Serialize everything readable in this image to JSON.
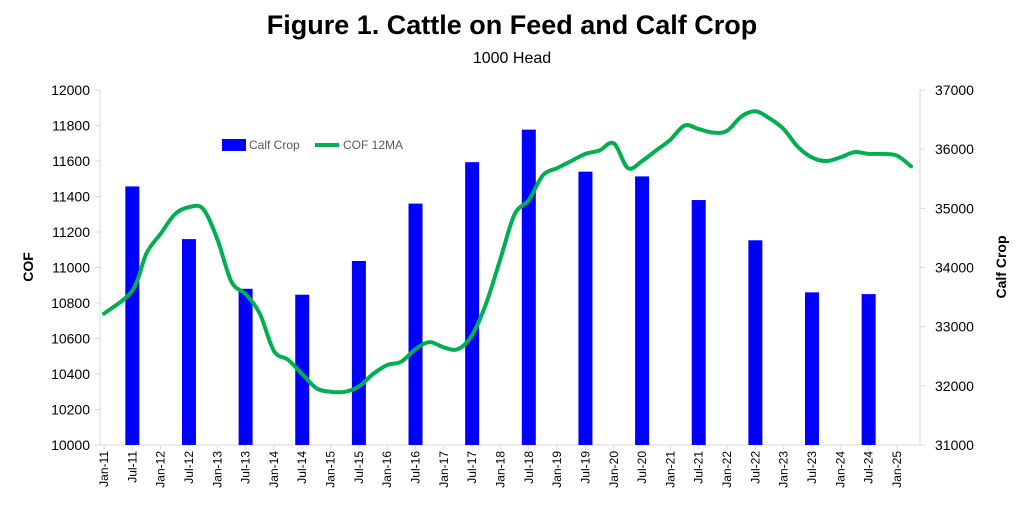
{
  "chart_data": {
    "type": "bar+line",
    "title": "Figure 1. Cattle on Feed and Calf Crop",
    "subtitle": "1000 Head",
    "ylabel_left": "COF",
    "ylabel_right": "Calf Crop",
    "ylim_left": [
      10000,
      12000
    ],
    "ylim_right": [
      31000,
      37000
    ],
    "yticks_left": [
      "10000",
      "10200",
      "10400",
      "10600",
      "10800",
      "11000",
      "11200",
      "11400",
      "11600",
      "11800",
      "12000"
    ],
    "yticks_right": [
      "31000",
      "32000",
      "33000",
      "34000",
      "35000",
      "36000",
      "37000"
    ],
    "x_tick_labels": [
      "Jan-11",
      "Jul-11",
      "Jan-12",
      "Jul-12",
      "Jan-13",
      "Jul-13",
      "Jan-14",
      "Jul-14",
      "Jan-15",
      "Jul-15",
      "Jan-16",
      "Jul-16",
      "Jan-17",
      "Jul-17",
      "Jan-18",
      "Jul-18",
      "Jan-19",
      "Jul-19",
      "Jan-20",
      "Jul-20",
      "Jan-21",
      "Jul-21",
      "Jan-22",
      "Jul-22",
      "Jan-23",
      "Jul-23",
      "Jan-24",
      "Jul-24",
      "Jan-25"
    ],
    "legend": {
      "placement": "top-left",
      "bar_label": "Calf Crop",
      "line_label": "COF 12MA"
    },
    "colors": {
      "bar": "#0000FF",
      "line": "#00B050",
      "axis": "#D9D9D9"
    },
    "calf_crop": {
      "name": "Calf Crop",
      "axis": "right",
      "x": [
        "Jul-11",
        "Jul-12",
        "Jul-13",
        "Jul-14",
        "Jul-15",
        "Jul-16",
        "Jul-17",
        "Jul-18",
        "Jul-19",
        "Jul-20",
        "Jul-21",
        "Jul-22",
        "Jul-23",
        "Jul-24"
      ],
      "values": [
        35370,
        34480,
        33640,
        33540,
        34110,
        35080,
        35780,
        36330,
        35620,
        35540,
        35140,
        34460,
        33580,
        33550
      ]
    },
    "cof_12ma": {
      "name": "COF 12MA",
      "axis": "left",
      "points": [
        [
          "Jan-11",
          10740
        ],
        [
          "Jul-11",
          10870
        ],
        [
          "Oct-11",
          11080
        ],
        [
          "Jan-12",
          11190
        ],
        [
          "Apr-12",
          11300
        ],
        [
          "Jul-12",
          11340
        ],
        [
          "Oct-12",
          11330
        ],
        [
          "Jan-13",
          11160
        ],
        [
          "Apr-13",
          10920
        ],
        [
          "Jul-13",
          10850
        ],
        [
          "Oct-13",
          10740
        ],
        [
          "Jan-14",
          10530
        ],
        [
          "Apr-14",
          10480
        ],
        [
          "Jul-14",
          10400
        ],
        [
          "Oct-14",
          10320
        ],
        [
          "Jan-15",
          10300
        ],
        [
          "Apr-15",
          10300
        ],
        [
          "Jul-15",
          10330
        ],
        [
          "Oct-15",
          10400
        ],
        [
          "Jan-16",
          10450
        ],
        [
          "Apr-16",
          10470
        ],
        [
          "Jul-16",
          10540
        ],
        [
          "Oct-16",
          10580
        ],
        [
          "Jan-17",
          10550
        ],
        [
          "Apr-17",
          10540
        ],
        [
          "Jul-17",
          10620
        ],
        [
          "Oct-17",
          10800
        ],
        [
          "Jan-18",
          11050
        ],
        [
          "Apr-18",
          11300
        ],
        [
          "Jul-18",
          11380
        ],
        [
          "Oct-18",
          11520
        ],
        [
          "Jan-19",
          11560
        ],
        [
          "Apr-19",
          11600
        ],
        [
          "Jul-19",
          11640
        ],
        [
          "Oct-19",
          11660
        ],
        [
          "Jan-20",
          11700
        ],
        [
          "Apr-20",
          11560
        ],
        [
          "Jul-20",
          11600
        ],
        [
          "Oct-20",
          11660
        ],
        [
          "Jan-21",
          11720
        ],
        [
          "Apr-21",
          11800
        ],
        [
          "Jul-21",
          11780
        ],
        [
          "Oct-21",
          11760
        ],
        [
          "Jan-22",
          11770
        ],
        [
          "Apr-22",
          11850
        ],
        [
          "Jul-22",
          11880
        ],
        [
          "Oct-22",
          11840
        ],
        [
          "Jan-23",
          11780
        ],
        [
          "Apr-23",
          11680
        ],
        [
          "Jul-23",
          11620
        ],
        [
          "Oct-23",
          11600
        ],
        [
          "Jan-24",
          11620
        ],
        [
          "Apr-24",
          11650
        ],
        [
          "Jul-24",
          11640
        ],
        [
          "Oct-24",
          11640
        ],
        [
          "Jan-25",
          11630
        ],
        [
          "Apr-25",
          11570
        ]
      ]
    }
  }
}
